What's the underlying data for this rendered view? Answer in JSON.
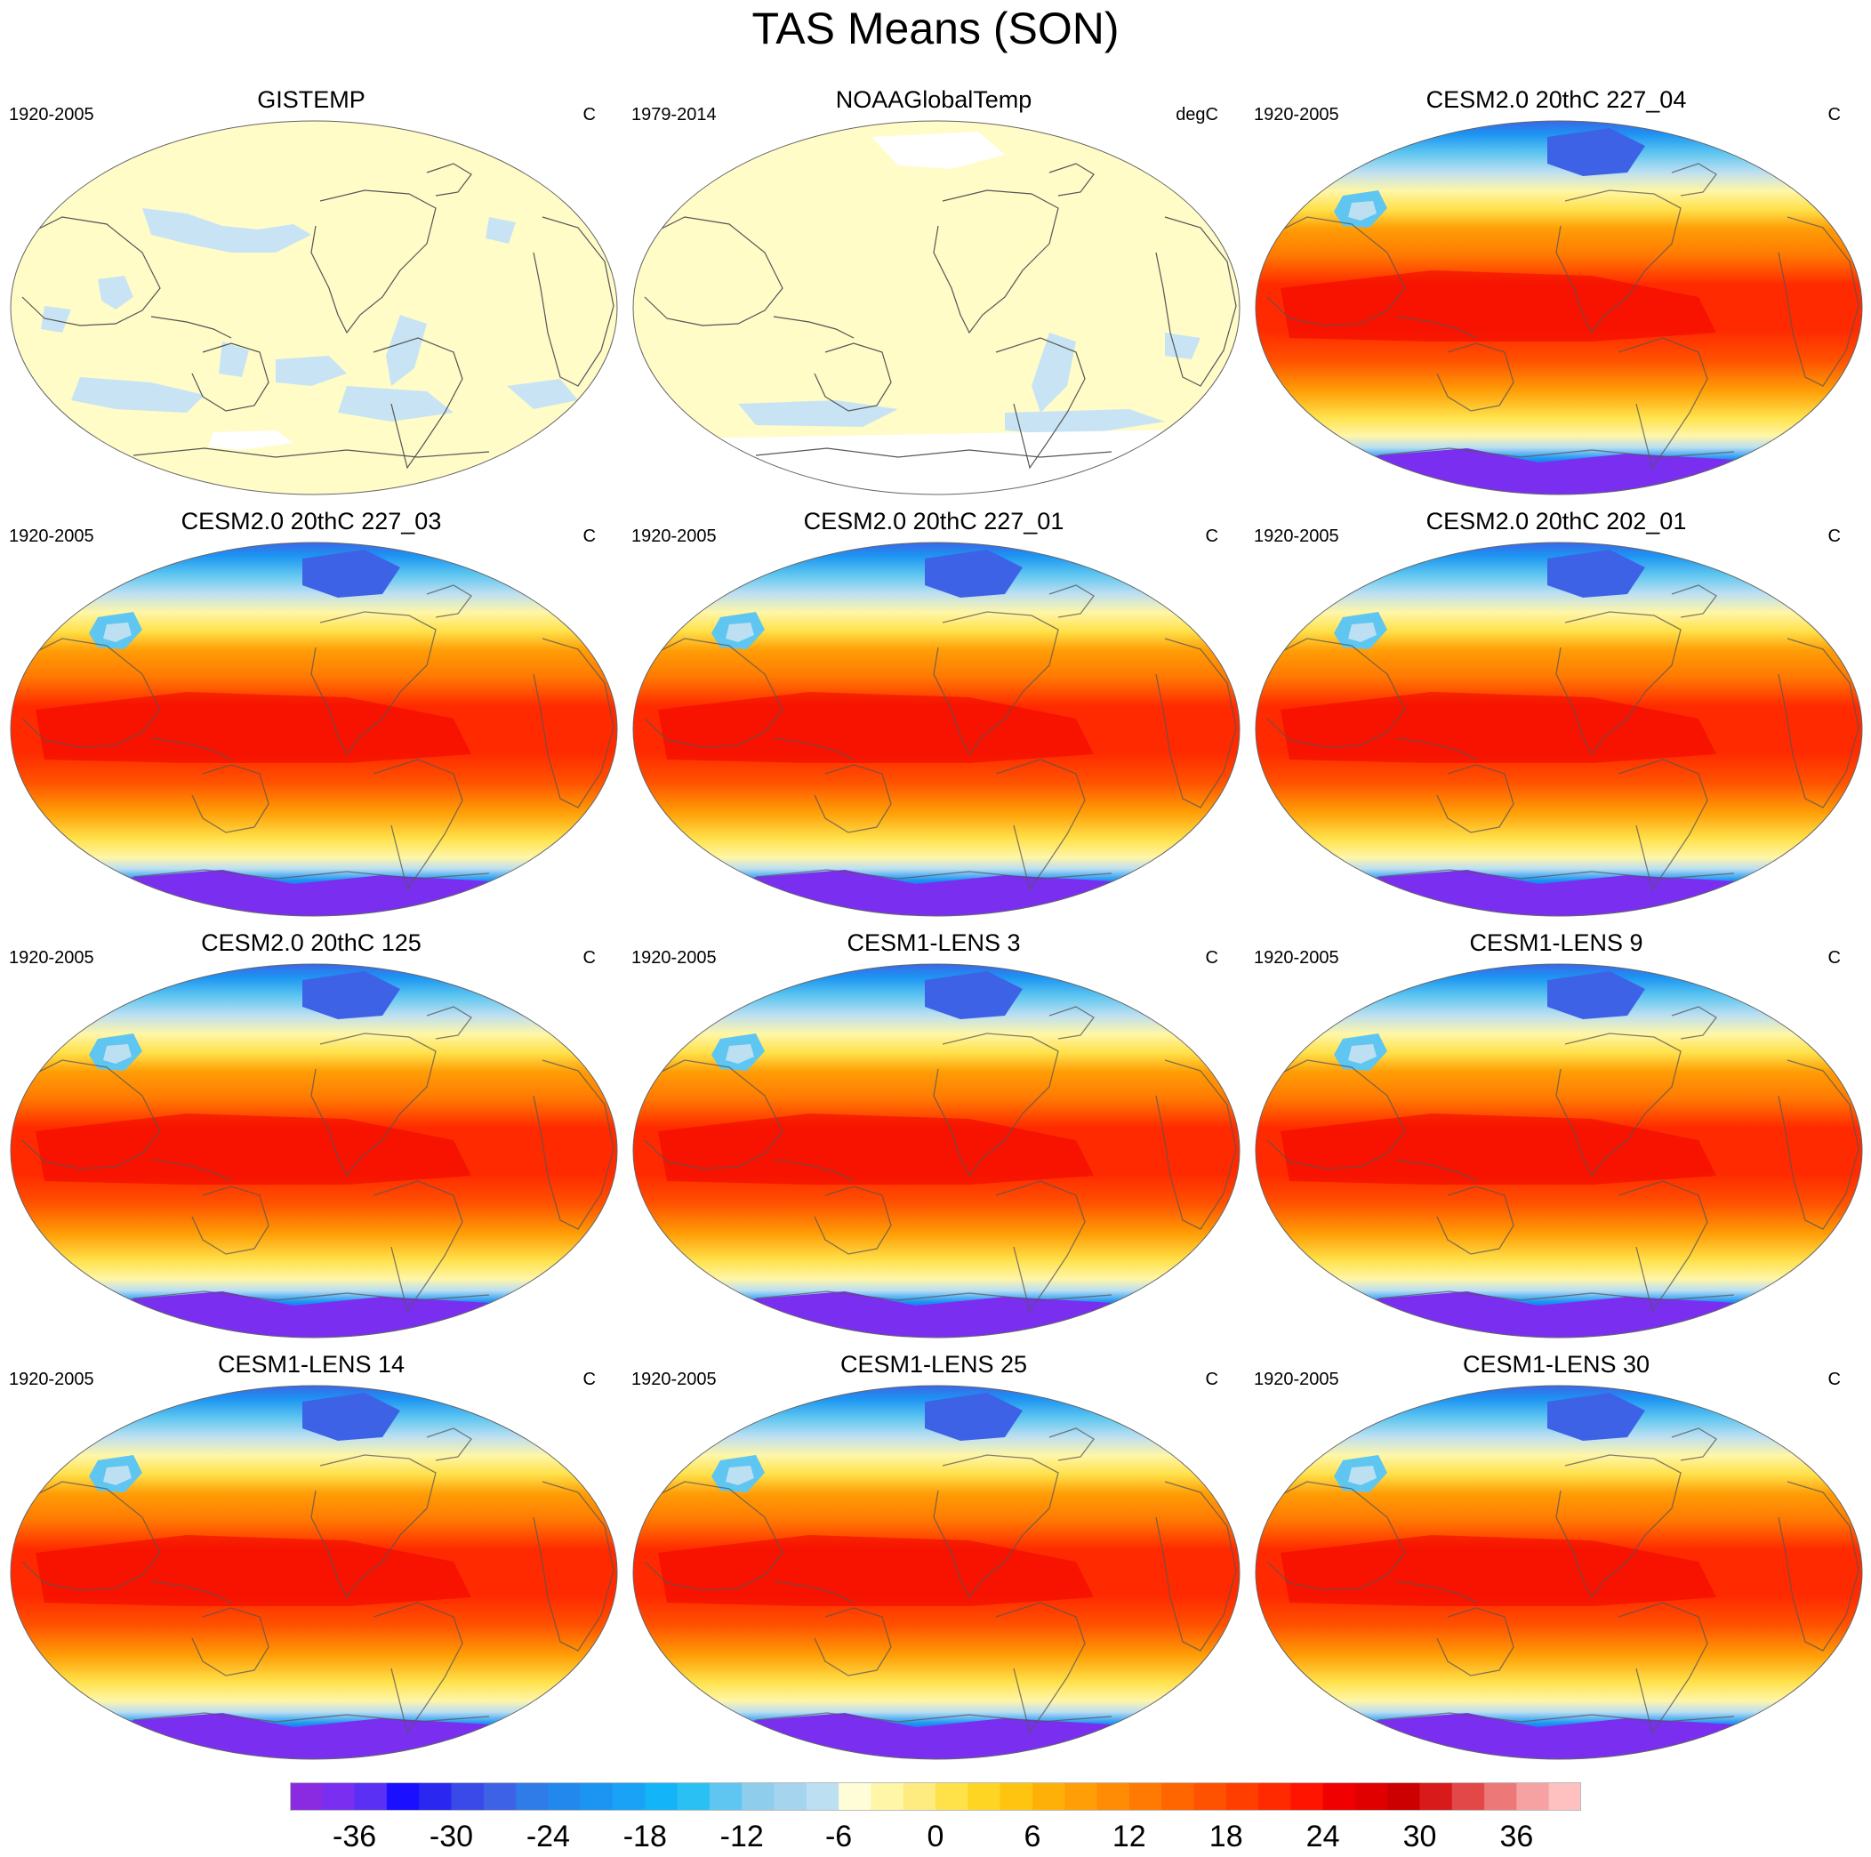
{
  "title": "TAS Means (SON)",
  "panels": [
    {
      "name": "GISTEMP",
      "period": "1920-2005",
      "units": "C",
      "style": "obs-gistemp"
    },
    {
      "name": "NOAAGlobalTemp",
      "period": "1979-2014",
      "units": "degC",
      "style": "obs-noaa"
    },
    {
      "name": "CESM2.0 20thC 227_04",
      "period": "1920-2005",
      "units": "C",
      "style": "model"
    },
    {
      "name": "CESM2.0 20thC 227_03",
      "period": "1920-2005",
      "units": "C",
      "style": "model"
    },
    {
      "name": "CESM2.0 20thC 227_01",
      "period": "1920-2005",
      "units": "C",
      "style": "model"
    },
    {
      "name": "CESM2.0 20thC 202_01",
      "period": "1920-2005",
      "units": "C",
      "style": "model"
    },
    {
      "name": "CESM2.0 20thC 125",
      "period": "1920-2005",
      "units": "C",
      "style": "model"
    },
    {
      "name": "CESM1-LENS 3",
      "period": "1920-2005",
      "units": "C",
      "style": "model"
    },
    {
      "name": "CESM1-LENS 9",
      "period": "1920-2005",
      "units": "C",
      "style": "model"
    },
    {
      "name": "CESM1-LENS 14",
      "period": "1920-2005",
      "units": "C",
      "style": "model"
    },
    {
      "name": "CESM1-LENS 25",
      "period": "1920-2005",
      "units": "C",
      "style": "model"
    },
    {
      "name": "CESM1-LENS 30",
      "period": "1920-2005",
      "units": "C",
      "style": "model"
    }
  ],
  "colorbar": {
    "tick_labels": [
      "-36",
      "-30",
      "-24",
      "-18",
      "-12",
      "-6",
      "0",
      "6",
      "12",
      "18",
      "24",
      "30",
      "36"
    ],
    "tick_box_index": [
      2,
      5,
      8,
      11,
      14,
      17,
      20,
      23,
      26,
      29,
      32,
      35,
      38
    ],
    "colors": [
      "#8a2be2",
      "#7a2ff0",
      "#5a30f5",
      "#1a10ff",
      "#2a28f0",
      "#3a4ae8",
      "#3e62e6",
      "#2f7be8",
      "#2388ee",
      "#1c95f2",
      "#1aa3f6",
      "#14b4f8",
      "#2bc0f4",
      "#5ec6f0",
      "#8fcdec",
      "#a4d4ee",
      "#bcdff2",
      "#fffdd8",
      "#fff6a8",
      "#ffec80",
      "#ffe14a",
      "#ffd524",
      "#ffc410",
      "#ffb008",
      "#ff9e06",
      "#ff8c04",
      "#ff7a02",
      "#ff6600",
      "#ff5200",
      "#ff3e00",
      "#ff2a00",
      "#ff1400",
      "#f00000",
      "#e00000",
      "#cc0000",
      "#d81a1a",
      "#e24848",
      "#ec7878",
      "#f6a2a2",
      "#ffc0c0"
    ]
  },
  "map_colors": {
    "obs_land_fill": "#fffcc8",
    "obs_negative_fill": "#c8e4f4",
    "missing_fill": "#ffffff",
    "coast_color": "#555555",
    "model_ramp": [
      "#7a2ff0",
      "#2a28f0",
      "#3e62e6",
      "#1c95f2",
      "#5ec6f0",
      "#bcdff2",
      "#fff6a8",
      "#ffe14a",
      "#ffc410",
      "#ff9e06",
      "#ff7a02",
      "#ff5200",
      "#ff2a00",
      "#f00000"
    ]
  }
}
